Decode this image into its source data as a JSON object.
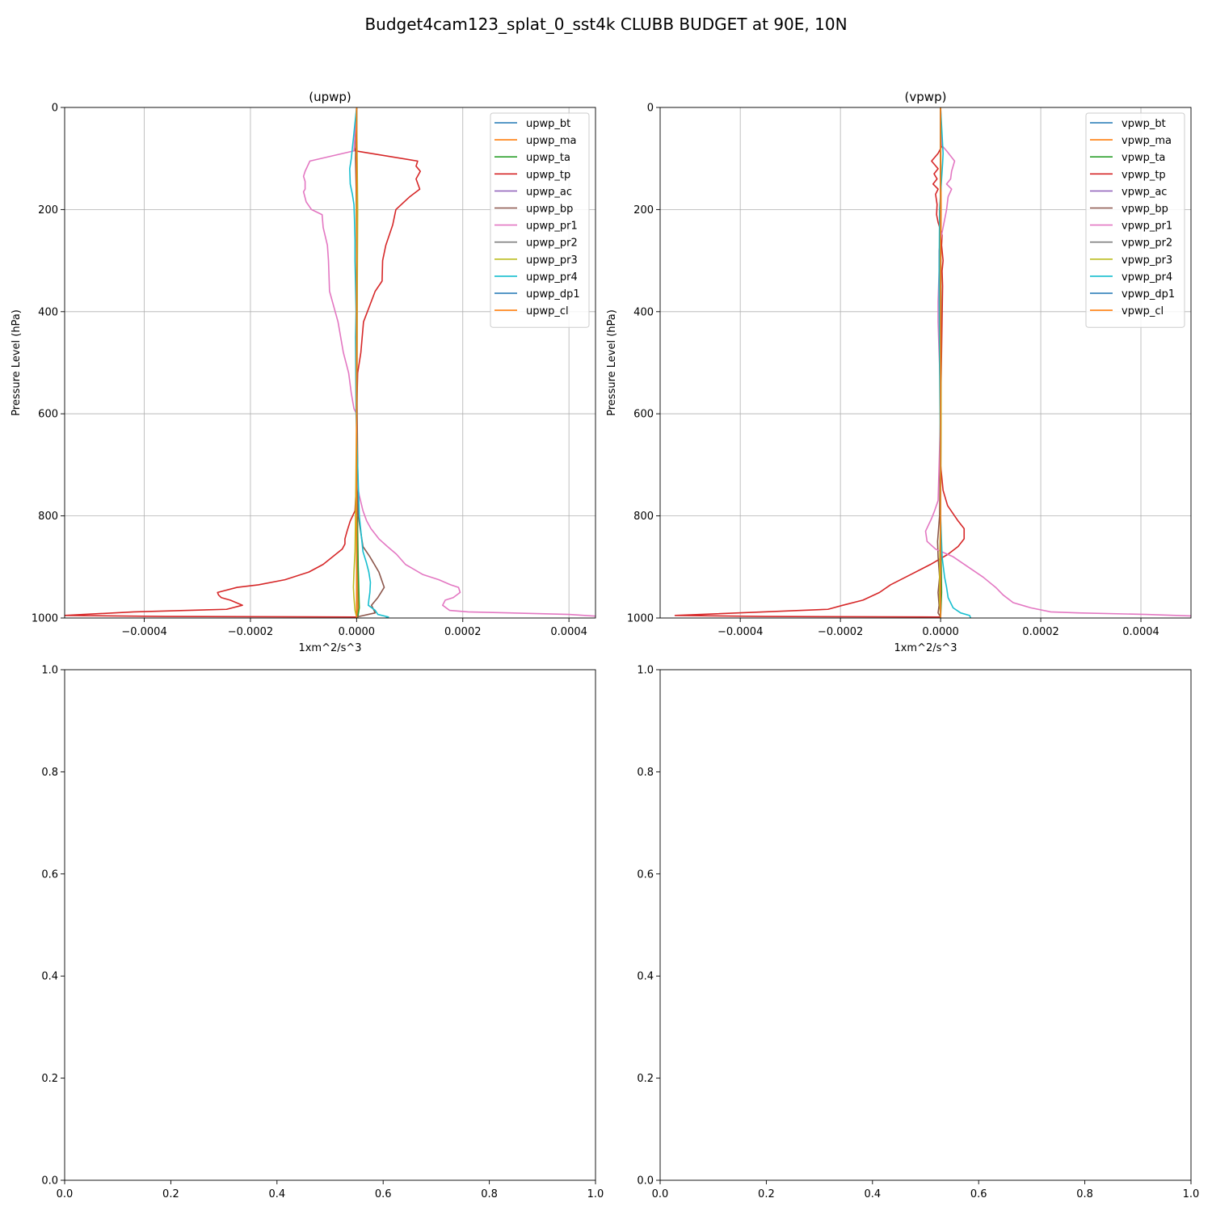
{
  "figure": {
    "suptitle": "Budget4cam123_splat_0_sst4k CLUBB BUDGET at 90E, 10N"
  },
  "colors": {
    "tab_blue": "#1f77b4",
    "tab_orange": "#ff7f0e",
    "tab_green": "#2ca02c",
    "tab_red": "#d62728",
    "tab_purple": "#9467bd",
    "tab_brown": "#8c564b",
    "tab_pink": "#e377c2",
    "tab_gray": "#7f7f7f",
    "tab_olive": "#bcbd22",
    "tab_cyan": "#17becf",
    "grid": "#b0b0b0"
  },
  "chart_data": [
    {
      "type": "line",
      "title": "(upwp)",
      "xlabel": "1xm^2/s^3",
      "ylabel": "Pressure Level (hPa)",
      "xlim": [
        -0.00055,
        0.00045
      ],
      "ylim": [
        1000,
        0
      ],
      "xticks": [
        -0.0004,
        -0.0002,
        0.0,
        0.0002,
        0.0004
      ],
      "xtick_labels": [
        "−0.0004",
        "−0.0002",
        "0.0000",
        "0.0002",
        "0.0004"
      ],
      "yticks": [
        0,
        200,
        400,
        600,
        800,
        1000
      ],
      "ytick_labels": [
        "0",
        "200",
        "400",
        "600",
        "800",
        "1000"
      ],
      "grid": true,
      "legend_position": "top-right",
      "series": [
        {
          "name": "upwp_bt",
          "color": "#1f77b4",
          "x": [
            0,
            0,
            0,
            0,
            0,
            0,
            0,
            0
          ],
          "y": [
            0,
            100,
            300,
            500,
            700,
            900,
            980,
            1000
          ]
        },
        {
          "name": "upwp_ma",
          "color": "#ff7f0e",
          "x": [
            0,
            0,
            1e-06,
            1e-06,
            0,
            2e-06,
            3e-06,
            0
          ],
          "y": [
            0,
            100,
            300,
            500,
            700,
            900,
            980,
            1000
          ]
        },
        {
          "name": "upwp_ta",
          "color": "#2ca02c",
          "x": [
            0,
            -1e-06,
            0,
            0,
            0,
            3e-06,
            5e-06,
            2e-06
          ],
          "y": [
            0,
            100,
            300,
            500,
            700,
            900,
            980,
            1000
          ]
        },
        {
          "name": "upwp_tp",
          "color": "#d62728",
          "x": [
            0,
            0,
            0,
            -3e-06,
            0.000115,
            0.000112,
            0.00012,
            0.000112,
            0.000119,
            0.0001,
            7.4e-05,
            6.8e-05,
            5.5e-05,
            4.9e-05,
            4.8e-05,
            3.5e-05,
            1.3e-05,
            8e-06,
            2e-06,
            0,
            0,
            0,
            -3e-06,
            -1.2e-05,
            -1.8e-05,
            -2.2e-05,
            -2.2e-05,
            -2.7e-05,
            -4.5e-05,
            -6.3e-05,
            -9e-05,
            -0.000135,
            -0.000185,
            -0.000225,
            -0.000262,
            -0.00026,
            -0.000255,
            -0.000238,
            -0.000215,
            -0.000245,
            -0.00042,
            -0.00055,
            -0.00036,
            0
          ],
          "y": [
            0,
            60,
            70,
            85,
            105,
            115,
            125,
            140,
            160,
            175,
            200,
            230,
            270,
            300,
            340,
            360,
            420,
            480,
            520,
            600,
            700,
            730,
            790,
            810,
            830,
            845,
            855,
            865,
            880,
            895,
            910,
            925,
            935,
            940,
            950,
            955,
            960,
            965,
            975,
            983,
            988,
            995,
            997,
            998
          ]
        },
        {
          "name": "upwp_ac",
          "color": "#9467bd",
          "x": [
            0,
            0,
            0,
            0,
            0,
            0
          ],
          "y": [
            0,
            200,
            500,
            800,
            950,
            1000
          ]
        },
        {
          "name": "upwp_bp",
          "color": "#8c564b",
          "x": [
            0,
            -2e-06,
            0,
            0,
            1e-06,
            3e-06,
            1.2e-05,
            2.5e-05,
            4.2e-05,
            5.2e-05,
            4.6e-05,
            4e-05,
            2.8e-05,
            3.5e-05,
            0
          ],
          "y": [
            0,
            100,
            200,
            400,
            600,
            800,
            860,
            880,
            910,
            940,
            950,
            960,
            975,
            990,
            998
          ]
        },
        {
          "name": "upwp_pr1",
          "color": "#e377c2",
          "x": [
            0,
            -5e-06,
            -8.8e-05,
            -9.7e-05,
            -0.0001,
            -9.7e-05,
            -9.7e-05,
            -0.0001,
            -9.5e-05,
            -8.5e-05,
            -6.5e-05,
            -6.3e-05,
            -5.5e-05,
            -5.3e-05,
            -5.1e-05,
            -3.5e-05,
            -2.5e-05,
            -1.5e-05,
            -1e-05,
            -5e-06,
            0,
            0,
            0,
            5e-06,
            1.2e-05,
            1.9e-05,
            2.7e-05,
            4.2e-05,
            5.8e-05,
            7.5e-05,
            9.2e-05,
            0.000125,
            0.000155,
            0.000177,
            0.000192,
            0.000195,
            0.000182,
            0.000167,
            0.000162,
            0.000175,
            0.00021,
            0.0004,
            0.00046
          ],
          "y": [
            0,
            85,
            105,
            125,
            135,
            145,
            160,
            165,
            185,
            200,
            210,
            235,
            270,
            300,
            360,
            420,
            480,
            520,
            560,
            590,
            600,
            700,
            730,
            760,
            790,
            810,
            825,
            845,
            860,
            875,
            895,
            915,
            925,
            935,
            940,
            950,
            960,
            965,
            975,
            985,
            988,
            993,
            997
          ]
        },
        {
          "name": "upwp_pr2",
          "color": "#7f7f7f",
          "x": [
            0,
            0,
            0,
            0,
            0,
            0
          ],
          "y": [
            0,
            200,
            500,
            800,
            950,
            1000
          ]
        },
        {
          "name": "upwp_pr3",
          "color": "#bcbd22",
          "x": [
            0,
            1e-06,
            2e-06,
            1e-06,
            0,
            -2e-06,
            -3e-06,
            -5e-06,
            -6e-06,
            -5e-06,
            -3e-06,
            0
          ],
          "y": [
            0,
            100,
            200,
            400,
            600,
            800,
            870,
            910,
            940,
            960,
            985,
            998
          ]
        },
        {
          "name": "upwp_pr4",
          "color": "#17becf",
          "x": [
            0,
            -1e-05,
            -1.3e-05,
            -1.2e-05,
            -8e-06,
            -5e-06,
            -4e-06,
            -3e-06,
            -3e-06,
            -2e-06,
            -1e-06,
            -2e-06,
            -1e-06,
            5e-06,
            1.2e-05,
            1.8e-05,
            2.3e-05,
            2.6e-05,
            2.5e-05,
            2.3e-05,
            2.2e-05,
            3.5e-05,
            4e-05,
            6e-05,
            5.5e-05
          ],
          "y": [
            0,
            100,
            120,
            150,
            170,
            190,
            220,
            260,
            300,
            350,
            400,
            450,
            600,
            800,
            870,
            890,
            910,
            930,
            950,
            965,
            975,
            985,
            993,
            998,
            1000
          ]
        },
        {
          "name": "upwp_dp1",
          "color": "#1f77b4",
          "x": [
            0,
            0,
            0,
            0,
            0
          ],
          "y": [
            0,
            300,
            600,
            900,
            1000
          ]
        },
        {
          "name": "upwp_cl",
          "color": "#ff7f0e",
          "x": [
            0,
            0,
            0,
            0,
            0
          ],
          "y": [
            0,
            300,
            600,
            900,
            1000
          ]
        }
      ]
    },
    {
      "type": "line",
      "title": "(vpwp)",
      "xlabel": "1xm^2/s^3",
      "ylabel": "Pressure Level (hPa)",
      "xlim": [
        -0.00056,
        0.0005
      ],
      "ylim": [
        1000,
        0
      ],
      "xticks": [
        -0.0004,
        -0.0002,
        0.0,
        0.0002,
        0.0004
      ],
      "xtick_labels": [
        "−0.0004",
        "−0.0002",
        "0.0000",
        "0.0002",
        "0.0004"
      ],
      "yticks": [
        0,
        200,
        400,
        600,
        800,
        1000
      ],
      "ytick_labels": [
        "0",
        "200",
        "400",
        "600",
        "800",
        "1000"
      ],
      "grid": true,
      "legend_position": "top-right",
      "series": [
        {
          "name": "vpwp_bt",
          "color": "#1f77b4",
          "x": [
            0,
            0,
            0,
            0,
            0,
            0
          ],
          "y": [
            0,
            200,
            500,
            800,
            950,
            1000
          ]
        },
        {
          "name": "vpwp_ma",
          "color": "#ff7f0e",
          "x": [
            0,
            1e-06,
            0,
            0,
            1e-06,
            0
          ],
          "y": [
            0,
            200,
            500,
            800,
            950,
            1000
          ]
        },
        {
          "name": "vpwp_ta",
          "color": "#2ca02c",
          "x": [
            0,
            0,
            1e-06,
            0,
            2e-06,
            0
          ],
          "y": [
            0,
            200,
            500,
            800,
            950,
            1000
          ]
        },
        {
          "name": "vpwp_tp",
          "color": "#d62728",
          "x": [
            0,
            0,
            3e-06,
            -5e-06,
            -1.8e-05,
            -5e-06,
            -1.3e-05,
            -7e-06,
            -1.5e-05,
            -5e-06,
            -1e-05,
            -7e-06,
            -8e-06,
            -5e-06,
            3e-06,
            2e-06,
            5e-06,
            3e-06,
            4e-06,
            0,
            0,
            5e-06,
            1.4e-05,
            3.5e-05,
            4.7e-05,
            4.7e-05,
            3.5e-05,
            1.5e-05,
            -2e-05,
            -6e-05,
            -0.0001,
            -0.000122,
            -0.000155,
            -0.000195,
            -0.000225,
            -0.00053,
            -0.00035,
            0
          ],
          "y": [
            0,
            70,
            75,
            90,
            105,
            120,
            130,
            140,
            150,
            160,
            170,
            190,
            210,
            225,
            250,
            270,
            300,
            320,
            350,
            600,
            700,
            750,
            780,
            810,
            825,
            845,
            860,
            875,
            895,
            915,
            935,
            950,
            965,
            975,
            983,
            995,
            997,
            998
          ]
        },
        {
          "name": "vpwp_ac",
          "color": "#9467bd",
          "x": [
            0,
            0,
            0,
            0,
            0
          ],
          "y": [
            0,
            300,
            600,
            900,
            1000
          ]
        },
        {
          "name": "vpwp_bp",
          "color": "#8c564b",
          "x": [
            0,
            0,
            0,
            -2e-06,
            -6e-06,
            -5e-06,
            -2e-06,
            -5e-06,
            -3e-06,
            -5e-06,
            0
          ],
          "y": [
            0,
            300,
            600,
            800,
            850,
            880,
            920,
            950,
            975,
            990,
            998
          ]
        },
        {
          "name": "vpwp_pr1",
          "color": "#e377c2",
          "x": [
            0,
            3e-06,
            1.2e-05,
            2.8e-05,
            2.2e-05,
            2e-05,
            1.2e-05,
            2.2e-05,
            1.5e-05,
            1.2e-05,
            8e-06,
            2e-06,
            -3e-06,
            -3e-06,
            -5e-06,
            -5e-06,
            -3e-06,
            0,
            0,
            -5e-06,
            -1.2e-05,
            -1.8e-05,
            -3e-05,
            -2.7e-05,
            -1e-05,
            2.5e-05,
            5.5e-05,
            8.5e-05,
            0.00011,
            0.000125,
            0.000145,
            0.00018,
            0.00022,
            0.000275,
            0.00041,
            0.0005
          ],
          "y": [
            0,
            75,
            85,
            105,
            125,
            140,
            150,
            160,
            175,
            200,
            220,
            250,
            280,
            320,
            380,
            420,
            480,
            560,
            600,
            770,
            790,
            805,
            830,
            850,
            865,
            880,
            900,
            920,
            940,
            955,
            970,
            980,
            988,
            990,
            993,
            996
          ]
        },
        {
          "name": "vpwp_pr2",
          "color": "#7f7f7f",
          "x": [
            0,
            0,
            0,
            0,
            0
          ],
          "y": [
            0,
            300,
            600,
            900,
            1000
          ]
        },
        {
          "name": "vpwp_pr3",
          "color": "#bcbd22",
          "x": [
            0,
            0,
            1e-06,
            0,
            -2e-06,
            -2e-06,
            0
          ],
          "y": [
            0,
            300,
            600,
            800,
            900,
            970,
            998
          ]
        },
        {
          "name": "vpwp_pr4",
          "color": "#17becf",
          "x": [
            0,
            5e-06,
            4e-06,
            -2e-06,
            -3e-06,
            -2e-06,
            -1e-06,
            0,
            3e-06,
            8e-06,
            1.2e-05,
            1.5e-05,
            2.5e-05,
            4e-05,
            5.8e-05,
            6e-05
          ],
          "y": [
            0,
            90,
            110,
            200,
            350,
            500,
            600,
            800,
            880,
            920,
            940,
            960,
            980,
            990,
            995,
            1000
          ]
        },
        {
          "name": "vpwp_dp1",
          "color": "#1f77b4",
          "x": [
            0,
            0,
            0,
            0,
            0
          ],
          "y": [
            0,
            300,
            600,
            900,
            1000
          ]
        },
        {
          "name": "vpwp_cl",
          "color": "#ff7f0e",
          "x": [
            0,
            0,
            0,
            0,
            0
          ],
          "y": [
            0,
            300,
            600,
            900,
            1000
          ]
        }
      ]
    },
    {
      "type": "line",
      "title": "",
      "xlim": [
        0,
        1
      ],
      "ylim": [
        0,
        1
      ],
      "xticks": [
        0,
        0.2,
        0.4,
        0.6,
        0.8,
        1.0
      ],
      "xtick_labels": [
        "0.0",
        "0.2",
        "0.4",
        "0.6",
        "0.8",
        "1.0"
      ],
      "yticks": [
        0,
        0.2,
        0.4,
        0.6,
        0.8,
        1.0
      ],
      "ytick_labels": [
        "0.0",
        "0.2",
        "0.4",
        "0.6",
        "0.8",
        "1.0"
      ],
      "grid": false,
      "series": []
    },
    {
      "type": "line",
      "title": "",
      "xlim": [
        0,
        1
      ],
      "ylim": [
        0,
        1
      ],
      "xticks": [
        0,
        0.2,
        0.4,
        0.6,
        0.8,
        1.0
      ],
      "xtick_labels": [
        "0.0",
        "0.2",
        "0.4",
        "0.6",
        "0.8",
        "1.0"
      ],
      "yticks": [
        0,
        0.2,
        0.4,
        0.6,
        0.8,
        1.0
      ],
      "ytick_labels": [
        "0.0",
        "0.2",
        "0.4",
        "0.6",
        "0.8",
        "1.0"
      ],
      "grid": false,
      "series": []
    }
  ]
}
